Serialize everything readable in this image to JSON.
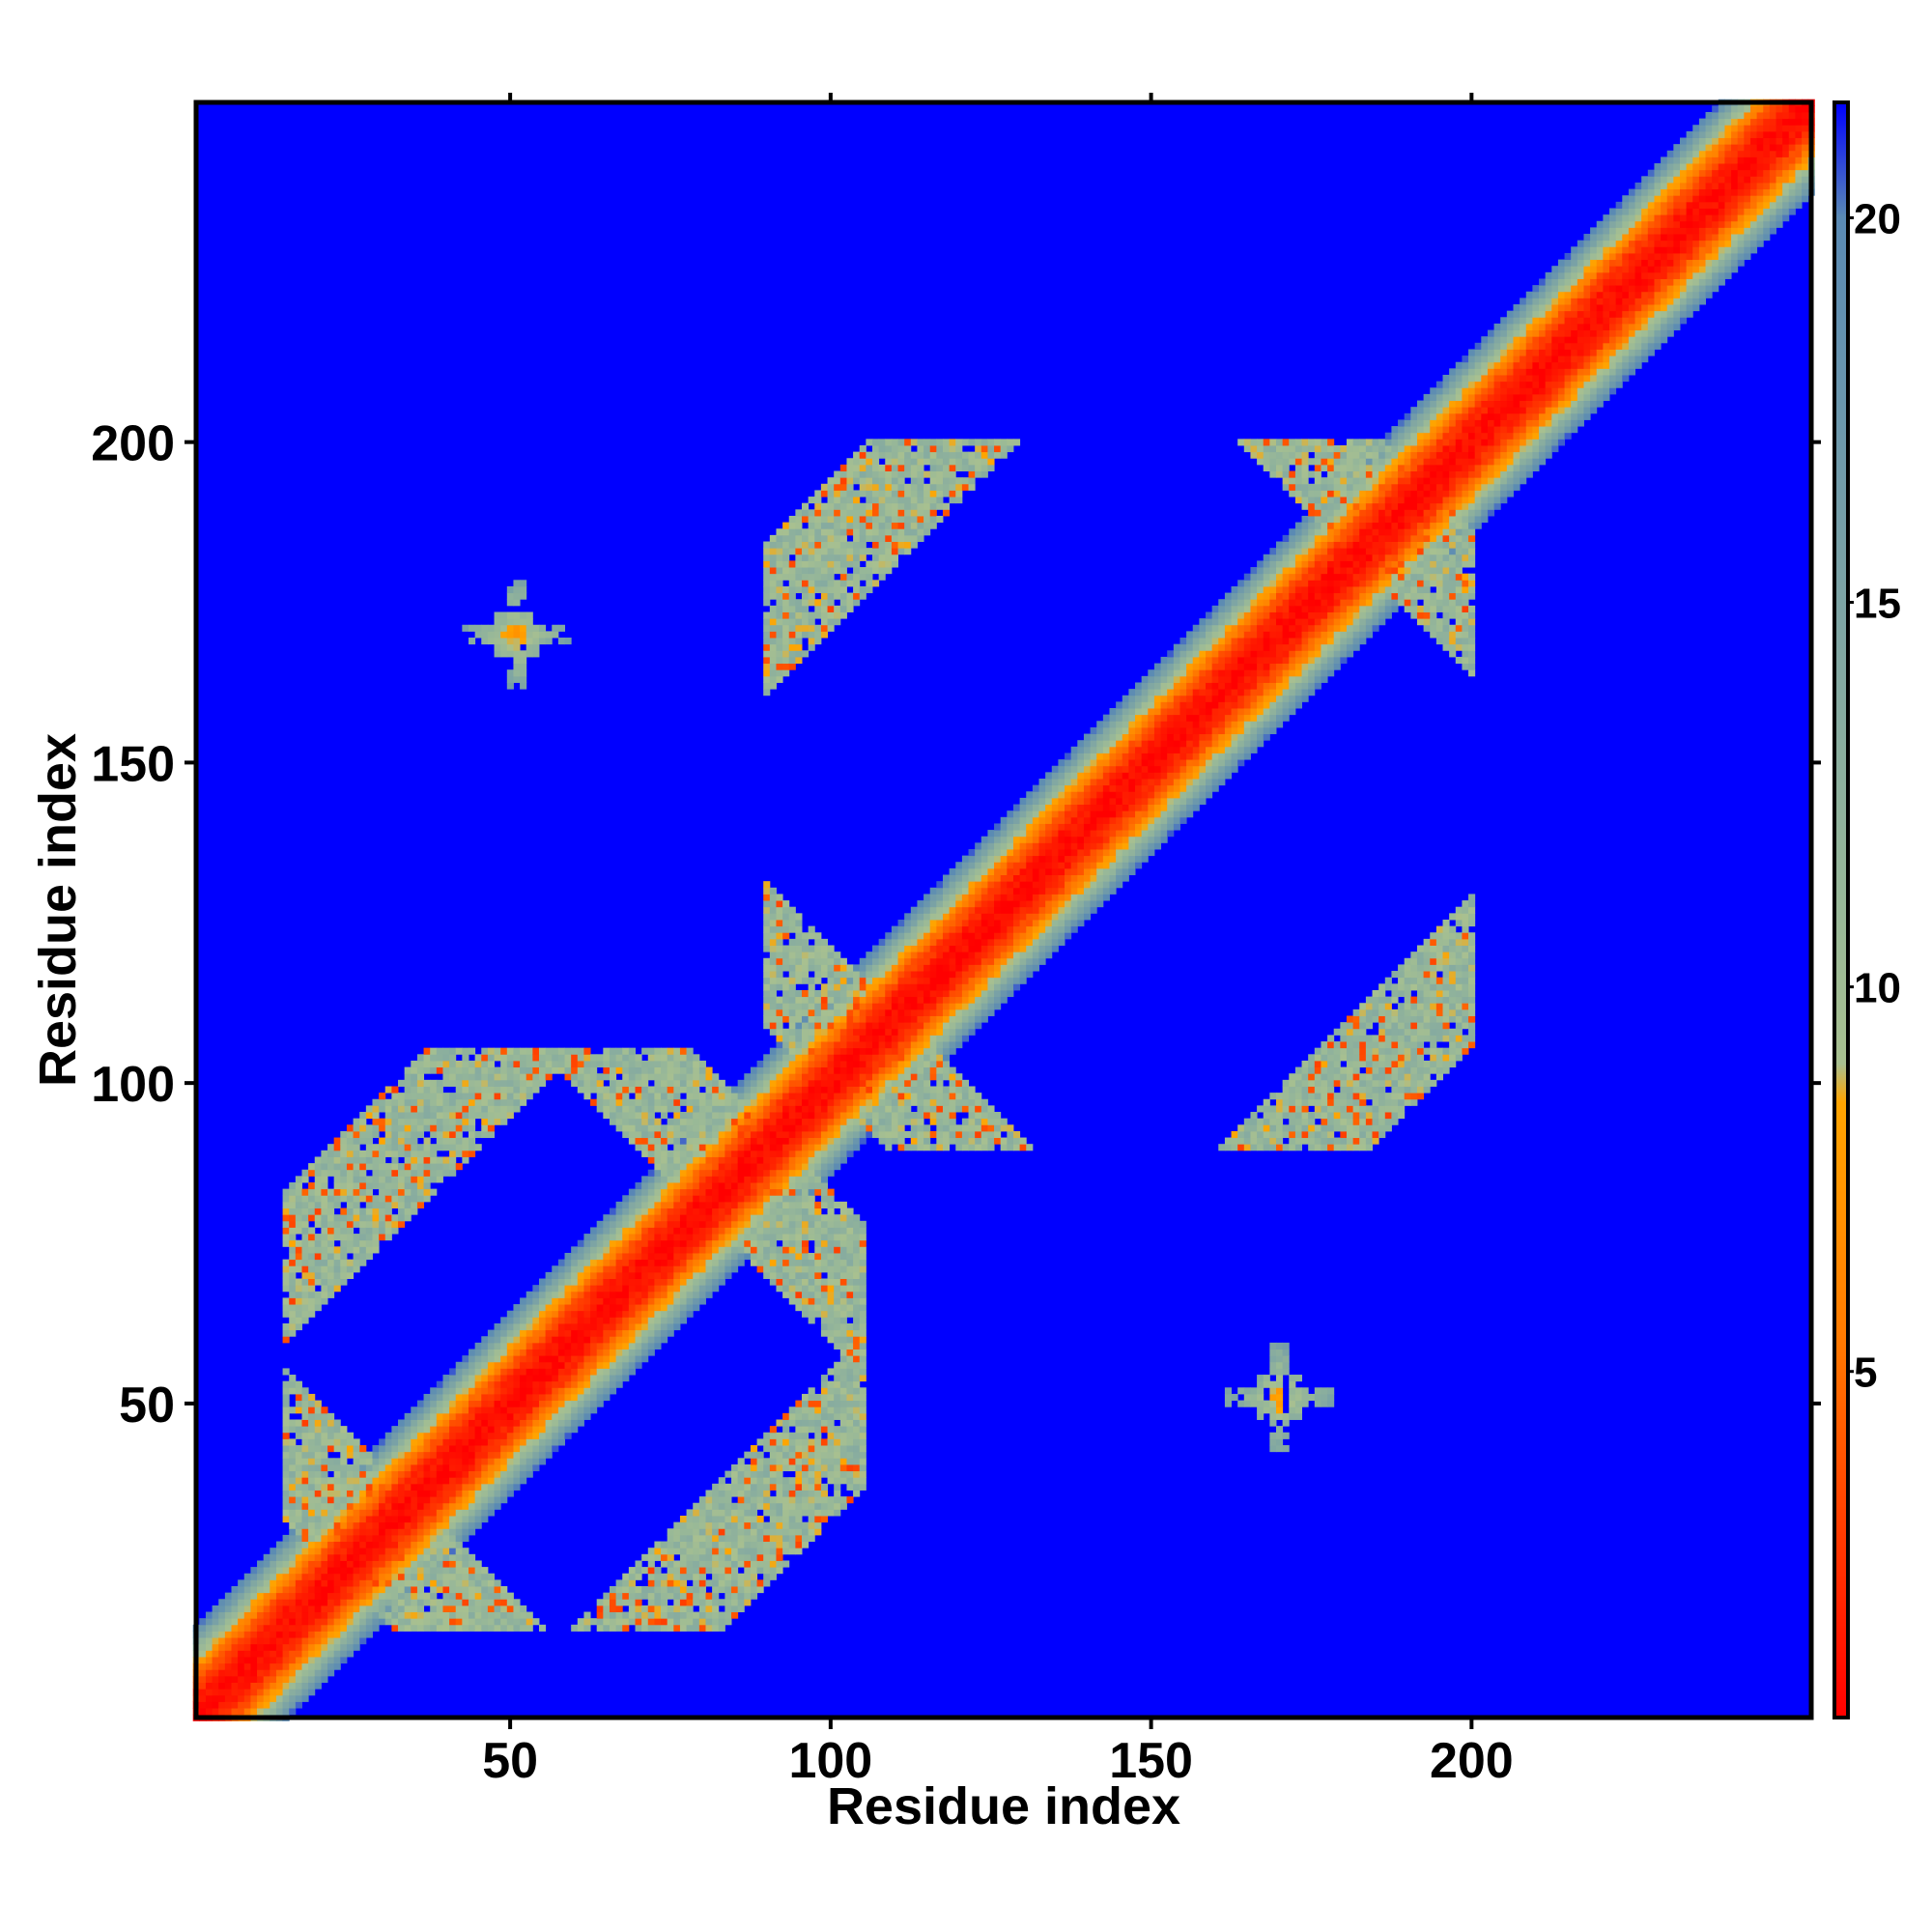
{
  "chart_data": {
    "type": "heatmap",
    "title": "",
    "xlabel": "Residue index",
    "ylabel": "Residue index",
    "xlim": [
      1,
      253
    ],
    "ylim": [
      1,
      253
    ],
    "x_ticks": [
      50,
      100,
      150,
      200
    ],
    "y_ticks": [
      50,
      100,
      150,
      200
    ],
    "colorbar": {
      "range": [
        0.5,
        21.5
      ],
      "ticks": [
        5,
        10,
        15,
        20
      ],
      "stops": [
        {
          "value": 0.5,
          "color": "#ff0000"
        },
        {
          "value": 5.5,
          "color": "#ff7b00"
        },
        {
          "value": 8.5,
          "color": "#ffa500"
        },
        {
          "value": 9.0,
          "color": "#a8c090"
        },
        {
          "value": 11.0,
          "color": "#98b898"
        },
        {
          "value": 20.0,
          "color": "#5a8ab4"
        },
        {
          "value": 21.5,
          "color": "#0000ff"
        }
      ]
    },
    "background_value": 21.5,
    "background_color": "#0000ff",
    "diagonal": {
      "width": 14
    },
    "features": [
      {
        "kind": "square-loop",
        "i_range": [
          15,
          90
        ],
        "j_range": [
          20,
          105
        ],
        "strength": 11
      },
      {
        "kind": "square-loop",
        "i_range": [
          90,
          200
        ],
        "j_range": [
          95,
          200
        ],
        "strength": 11
      },
      {
        "kind": "spot",
        "i": 51,
        "j": 170,
        "strength": 8
      },
      {
        "kind": "spot",
        "i": 170,
        "j": 51,
        "strength": 8
      }
    ]
  }
}
